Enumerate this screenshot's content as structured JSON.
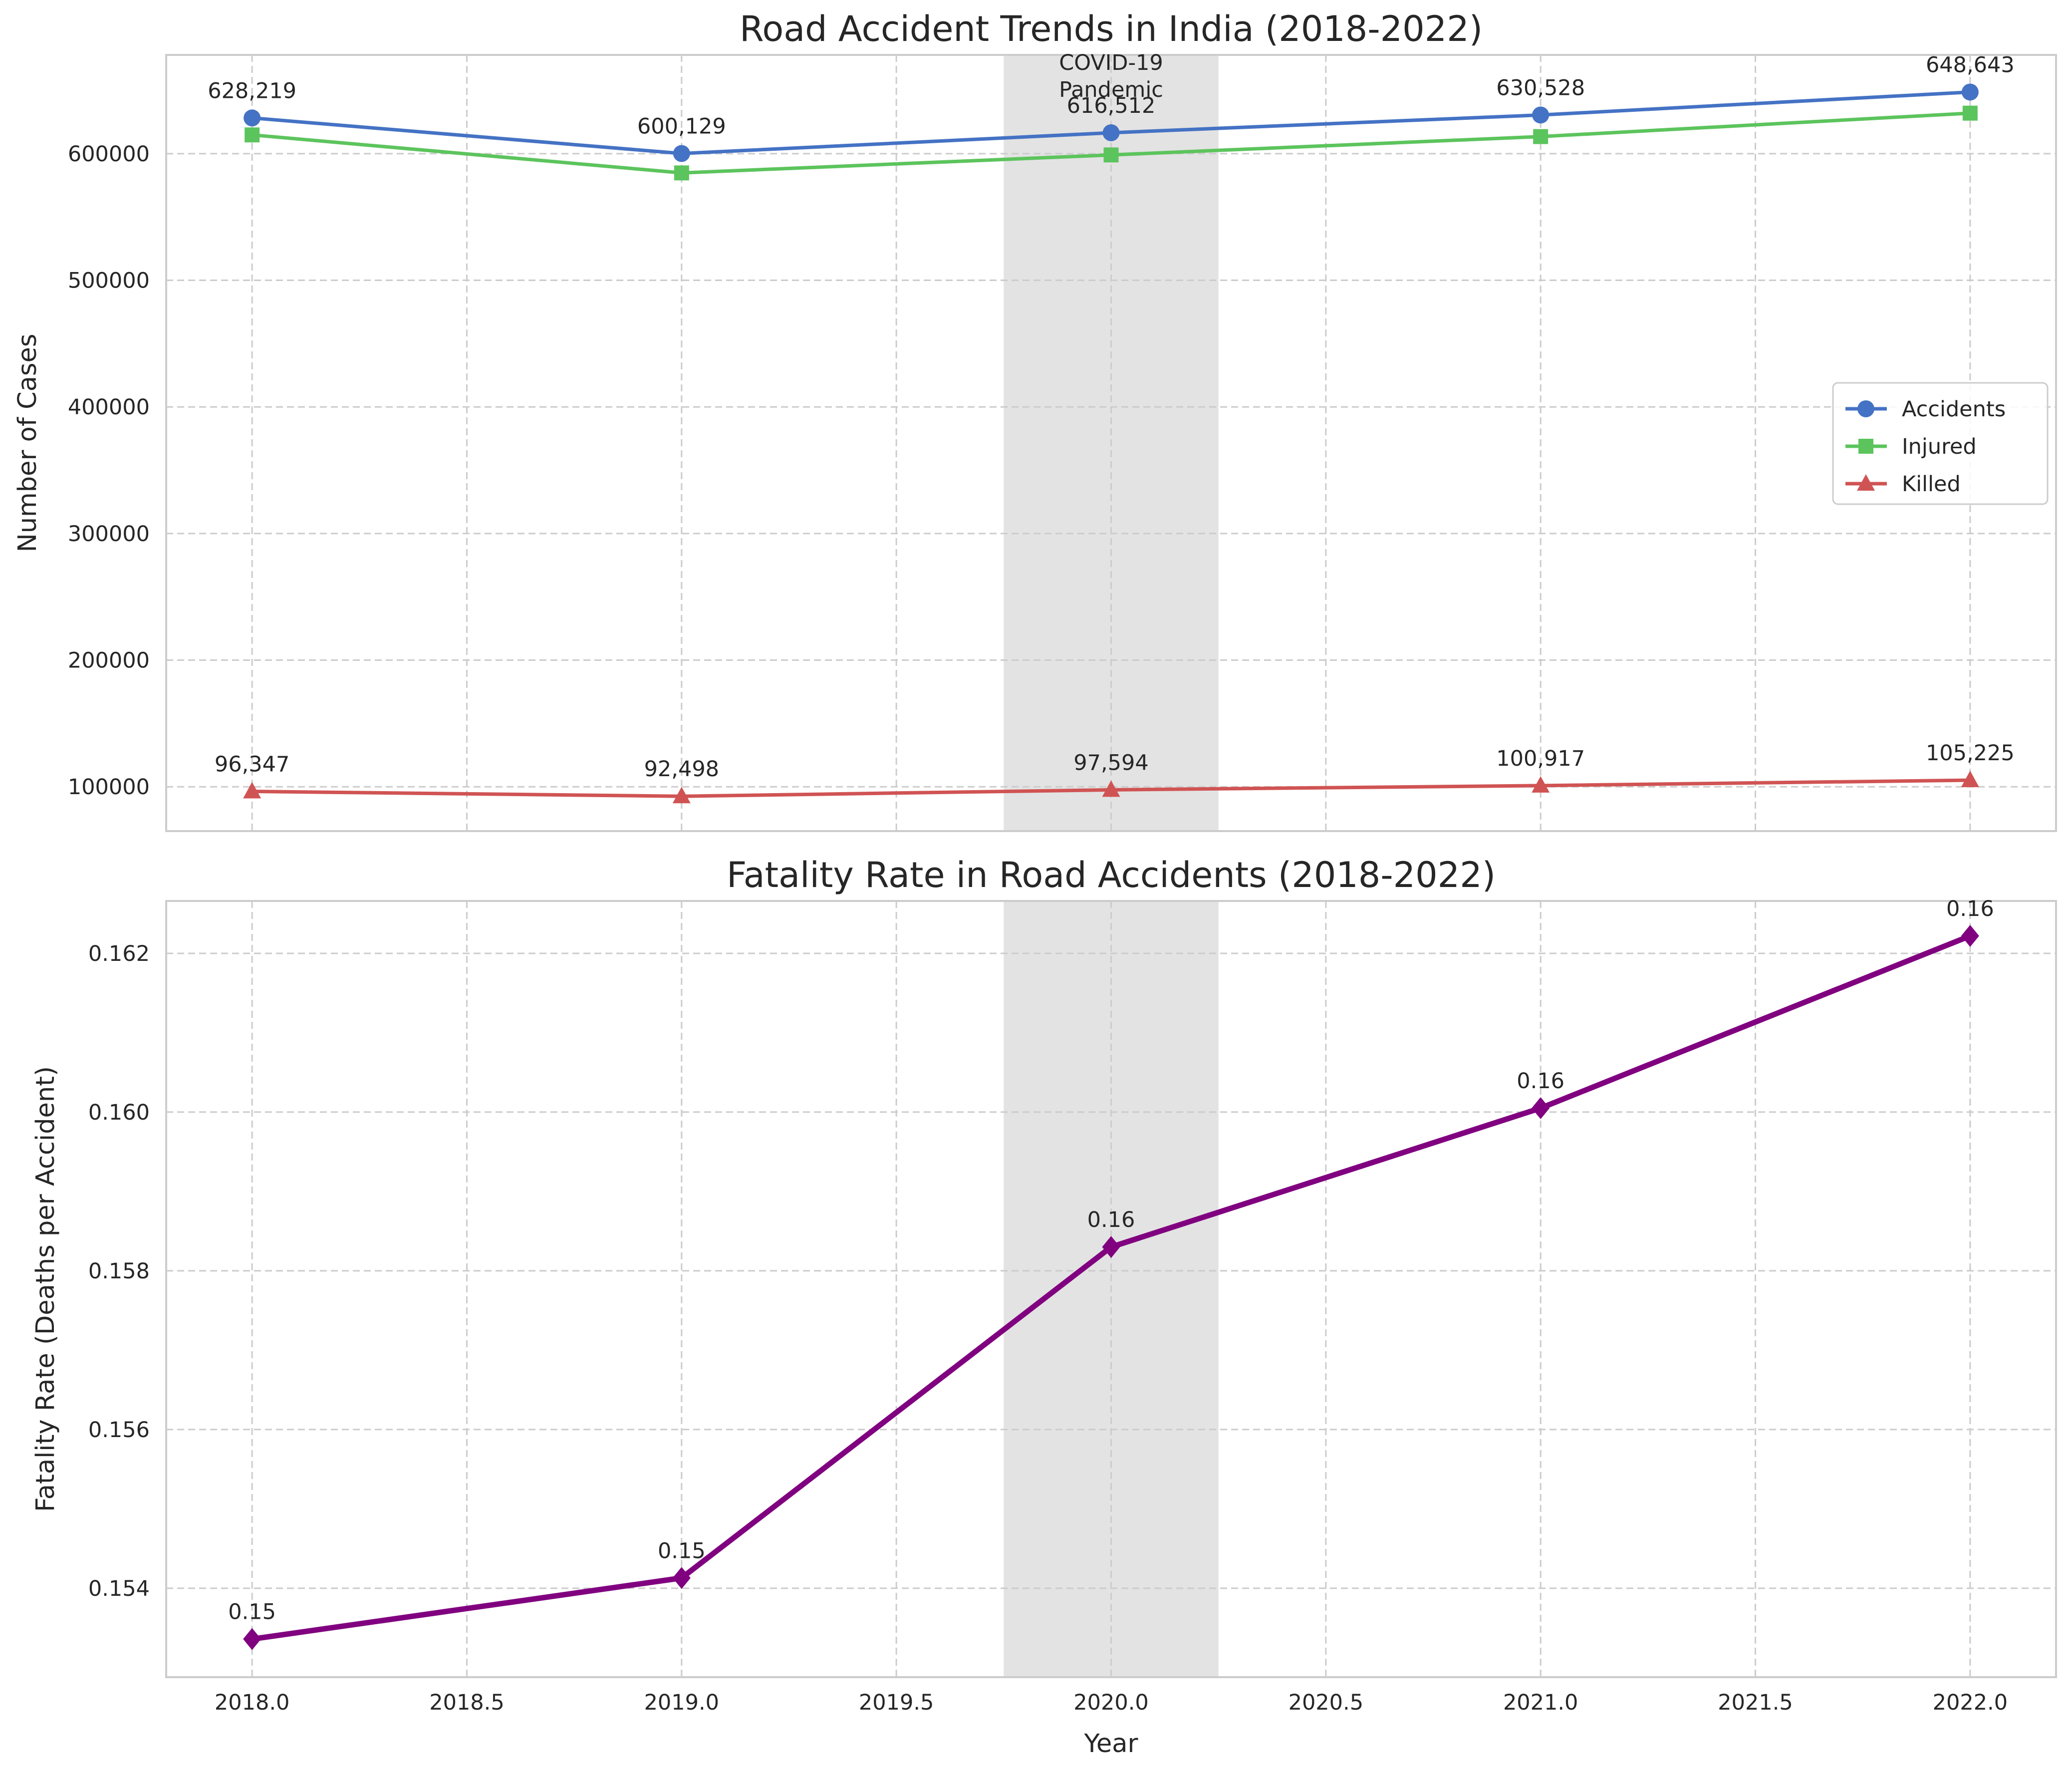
{
  "chart_data": [
    {
      "type": "line",
      "title": "Road Accident Trends in India (2018-2022)",
      "ylabel": "Number of Cases",
      "x": [
        2018,
        2019,
        2020,
        2021,
        2022
      ],
      "xlim": [
        2017.8,
        2022.2
      ],
      "ylim": [
        65000,
        678000
      ],
      "yticks": [
        100000,
        200000,
        300000,
        400000,
        500000,
        600000
      ],
      "ytick_labels": [
        "100000",
        "200000",
        "300000",
        "400000",
        "500000",
        "600000"
      ],
      "grid": true,
      "legend_position": "center-right",
      "shaded_region": {
        "x_range": [
          2019.75,
          2020.25
        ],
        "label": "COVID-19\nPandemic",
        "color": "#d9d9d9"
      },
      "series": [
        {
          "name": "Accidents",
          "marker": "circle",
          "color": "#4472c4",
          "values": [
            628219,
            600129,
            616512,
            630528,
            648643
          ],
          "labels": [
            "628,219",
            "600,129",
            "616,512",
            "630,528",
            "648,643"
          ]
        },
        {
          "name": "Injured",
          "marker": "square",
          "color": "#5cc45c",
          "values": [
            614819,
            584800,
            599000,
            613500,
            632000
          ]
        },
        {
          "name": "Killed",
          "marker": "triangle",
          "color": "#d05353",
          "values": [
            96347,
            92498,
            97594,
            100917,
            105225
          ],
          "labels": [
            "96,347",
            "92,498",
            "97,594",
            "100,917",
            "105,225"
          ]
        }
      ]
    },
    {
      "type": "line",
      "title": "Fatality Rate in Road Accidents (2018-2022)",
      "ylabel": "Fatality Rate (Deaths per Accident)",
      "xlabel": "Year",
      "x": [
        2018,
        2019,
        2020,
        2021,
        2022
      ],
      "xlim": [
        2017.8,
        2022.2
      ],
      "xticks": [
        2018.0,
        2018.5,
        2019.0,
        2019.5,
        2020.0,
        2020.5,
        2021.0,
        2021.5,
        2022.0
      ],
      "xtick_labels": [
        "2018.0",
        "2018.5",
        "2019.0",
        "2019.5",
        "2020.0",
        "2020.5",
        "2021.0",
        "2021.5",
        "2022.0"
      ],
      "ylim": [
        0.15288,
        0.16266
      ],
      "yticks": [
        0.154,
        0.156,
        0.158,
        0.16,
        0.162
      ],
      "ytick_labels": [
        "0.154",
        "0.156",
        "0.158",
        "0.160",
        "0.162"
      ],
      "grid": true,
      "shaded_region": {
        "x_range": [
          2019.75,
          2020.25
        ],
        "color": "#d9d9d9"
      },
      "series": [
        {
          "marker": "diamond",
          "color": "#800080",
          "values": [
            0.15336,
            0.15413,
            0.1583,
            0.16005,
            0.16222
          ],
          "labels": [
            "0.15",
            "0.15",
            "0.16",
            "0.16",
            "0.16"
          ]
        }
      ]
    }
  ]
}
